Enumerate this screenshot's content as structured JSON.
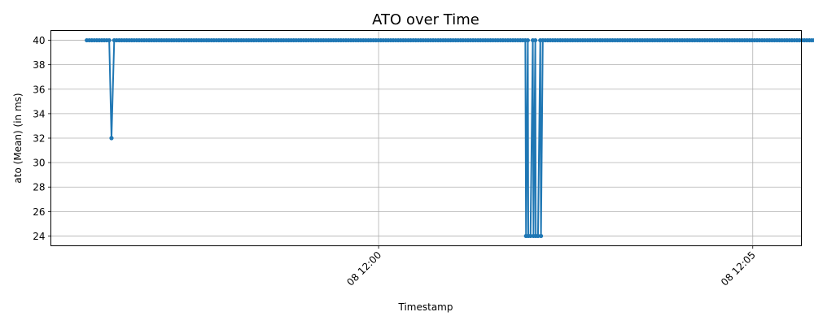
{
  "chart_data": {
    "type": "line",
    "title": "ATO over Time",
    "xlabel": "Timestamp",
    "ylabel": "ato (Mean) (in ms)",
    "grid": true,
    "x_unit": "minutes after 11:55",
    "xlim": [
      0.62,
      10.65
    ],
    "ylim": [
      23.2,
      40.8
    ],
    "yticks": [
      24,
      26,
      28,
      30,
      32,
      34,
      36,
      38,
      40
    ],
    "xticks": [
      {
        "value": 5,
        "label": "08 12:00"
      },
      {
        "value": 10,
        "label": "08 12:05"
      }
    ],
    "series": [
      {
        "name": "ato (Mean)",
        "color": "#1f77b4",
        "sampling": {
          "start": 1.1,
          "end": 11.15,
          "step": 0.0333
        },
        "default_value": 40,
        "overrides": [
          {
            "x": 1.43,
            "value": 32
          },
          {
            "x": 6.97,
            "value": 24
          },
          {
            "x": 7.0,
            "value": 24
          },
          {
            "x": 7.03,
            "value": 24
          },
          {
            "x": 7.07,
            "value": 24
          },
          {
            "x": 7.1,
            "value": 24
          },
          {
            "x": 7.13,
            "value": 24
          },
          {
            "x": 7.17,
            "value": 24
          }
        ],
        "x_end": 11.13
      }
    ]
  }
}
